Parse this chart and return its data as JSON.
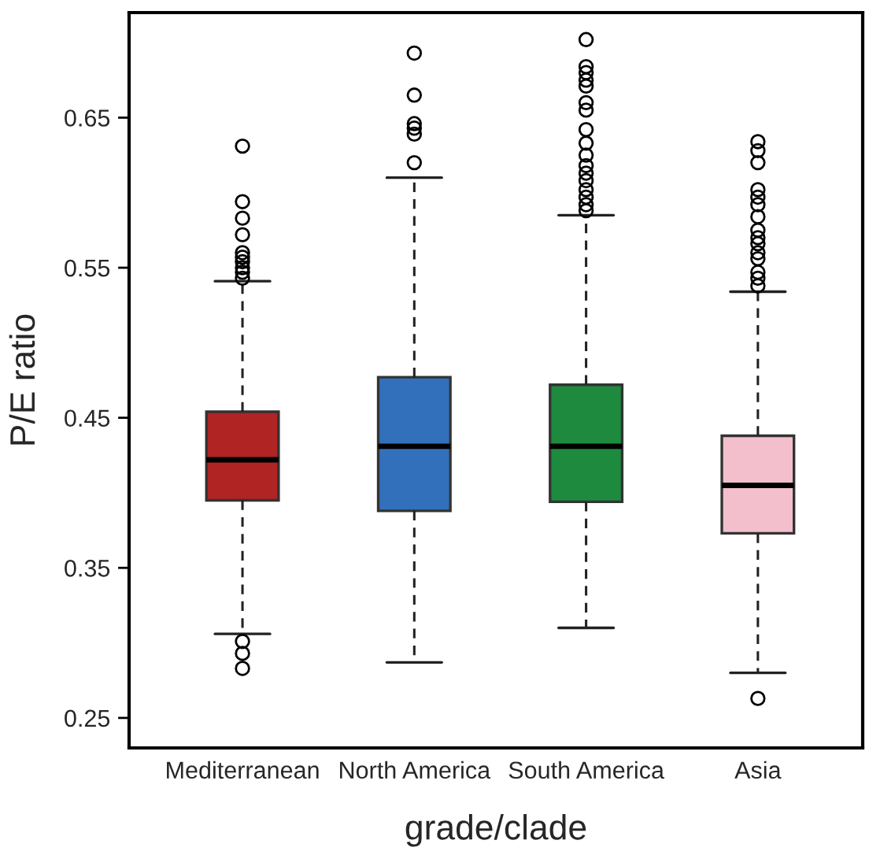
{
  "chart_data": {
    "type": "box",
    "xlabel": "grade/clade",
    "ylabel": "P/E ratio",
    "categories": [
      "Mediterranean",
      "North America",
      "South America",
      "Asia"
    ],
    "colors": [
      "#b02424",
      "#3370bb",
      "#1e8a3e",
      "#f4bfcd"
    ],
    "boxes": [
      {
        "low": 0.306,
        "q1": 0.395,
        "median": 0.422,
        "q3": 0.454,
        "high": 0.541,
        "outliers": [
          0.301,
          0.293,
          0.283,
          0.631,
          0.594,
          0.583,
          0.572,
          0.56,
          0.557,
          0.554,
          0.55,
          0.547,
          0.543
        ]
      },
      {
        "low": 0.287,
        "q1": 0.388,
        "median": 0.431,
        "q3": 0.477,
        "high": 0.61,
        "outliers": [
          0.693,
          0.665,
          0.646,
          0.643,
          0.639,
          0.62
        ]
      },
      {
        "low": 0.31,
        "q1": 0.394,
        "median": 0.431,
        "q3": 0.472,
        "high": 0.585,
        "outliers": [
          0.702,
          0.684,
          0.68,
          0.675,
          0.671,
          0.66,
          0.655,
          0.642,
          0.633,
          0.625,
          0.618,
          0.613,
          0.608,
          0.602,
          0.597,
          0.592,
          0.588
        ]
      },
      {
        "low": 0.28,
        "q1": 0.373,
        "median": 0.405,
        "q3": 0.438,
        "high": 0.534,
        "outliers": [
          0.263,
          0.634,
          0.628,
          0.62,
          0.602,
          0.597,
          0.592,
          0.584,
          0.575,
          0.57,
          0.566,
          0.56,
          0.556,
          0.547,
          0.543,
          0.538
        ]
      }
    ],
    "ylim": [
      0.23,
      0.72
    ],
    "yticks": [
      0.25,
      0.35,
      0.45,
      0.55,
      0.65
    ],
    "grid": false
  }
}
